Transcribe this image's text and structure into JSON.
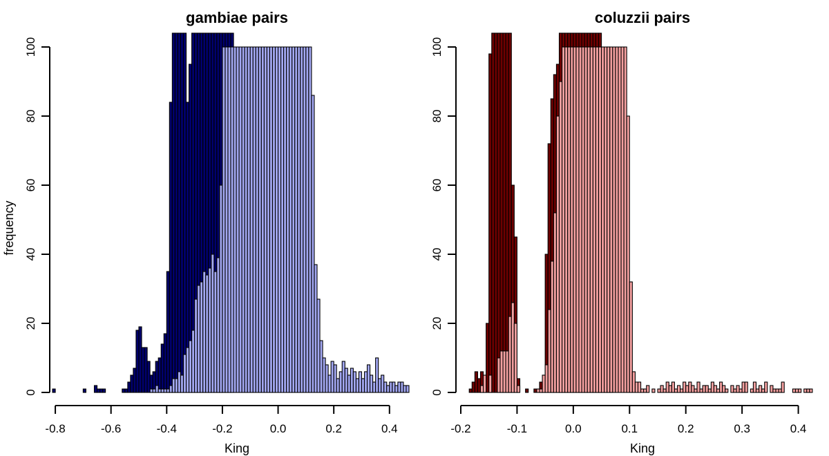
{
  "figure": {
    "ylabel": "frequency"
  },
  "chart_data": [
    {
      "type": "bar",
      "title": "gambiae pairs",
      "xlabel": "King",
      "ylabel": "frequency",
      "xlim": [
        -0.82,
        0.47
      ],
      "ylim": [
        0,
        100
      ],
      "bin_width": 0.01,
      "x_ticks": [
        "-0.8",
        "-0.6",
        "-0.4",
        "-0.2",
        "0.0",
        "0.2",
        "0.4"
      ],
      "y_ticks": [
        "0",
        "20",
        "40",
        "60",
        "80",
        "100"
      ],
      "series": [
        {
          "color": "#00006e",
          "bin_starts": [
            -0.81,
            -0.7,
            -0.66,
            -0.65,
            -0.64,
            -0.63,
            -0.56,
            -0.55,
            -0.54,
            -0.53,
            -0.52,
            -0.51,
            -0.5,
            -0.49,
            -0.48,
            -0.47,
            -0.46,
            -0.45,
            -0.44,
            -0.43,
            -0.42,
            -0.41,
            -0.4,
            -0.39,
            -0.38,
            -0.37,
            -0.36,
            -0.35,
            -0.34,
            -0.33,
            -0.32,
            -0.31,
            -0.3,
            -0.29,
            -0.28,
            -0.27,
            -0.26,
            -0.25,
            -0.24,
            -0.23,
            -0.22,
            -0.21,
            -0.2,
            -0.19,
            -0.18,
            -0.17
          ],
          "values": [
            1,
            1,
            2,
            1,
            1,
            1,
            1,
            1,
            3,
            5,
            7,
            18,
            19,
            13,
            13,
            9,
            5,
            6,
            9,
            10,
            14,
            17,
            35,
            84,
            120,
            120,
            120,
            110,
            110,
            84,
            95,
            105,
            120,
            110,
            110,
            120,
            120,
            120,
            120,
            120,
            120,
            120,
            120,
            110,
            108,
            120
          ]
        },
        {
          "color": "#a3a8f2",
          "bin_starts": [
            -0.46,
            -0.45,
            -0.44,
            -0.43,
            -0.42,
            -0.41,
            -0.4,
            -0.39,
            -0.38,
            -0.37,
            -0.36,
            -0.35,
            -0.34,
            -0.33,
            -0.32,
            -0.31,
            -0.3,
            -0.29,
            -0.28,
            -0.27,
            -0.26,
            -0.25,
            -0.24,
            -0.23,
            -0.22,
            -0.21,
            -0.2,
            -0.19,
            -0.18,
            -0.17,
            -0.16,
            -0.15,
            -0.14,
            -0.13,
            -0.12,
            -0.11,
            -0.1,
            -0.09,
            -0.08,
            -0.07,
            -0.06,
            -0.05,
            -0.04,
            -0.03,
            -0.02,
            -0.01,
            0.0,
            0.01,
            0.02,
            0.03,
            0.04,
            0.05,
            0.06,
            0.07,
            0.08,
            0.09,
            0.1,
            0.11,
            0.12,
            0.13,
            0.14,
            0.15,
            0.16,
            0.17,
            0.18,
            0.19,
            0.2,
            0.21,
            0.22,
            0.23,
            0.24,
            0.25,
            0.26,
            0.27,
            0.28,
            0.29,
            0.3,
            0.31,
            0.32,
            0.33,
            0.34,
            0.35,
            0.36,
            0.37,
            0.38,
            0.39,
            0.4,
            0.41,
            0.42,
            0.43,
            0.44,
            0.45,
            0.46
          ],
          "values": [
            1,
            1,
            2,
            1,
            1,
            1,
            1,
            2,
            4,
            4,
            6,
            5,
            11,
            13,
            15,
            18,
            27,
            31,
            32,
            35,
            34,
            36,
            40,
            35,
            39,
            60,
            100,
            100,
            100,
            100,
            100,
            100,
            100,
            100,
            100,
            100,
            100,
            100,
            100,
            100,
            100,
            100,
            100,
            100,
            100,
            100,
            100,
            100,
            100,
            100,
            100,
            100,
            100,
            100,
            100,
            100,
            100,
            100,
            86,
            37,
            27,
            15,
            10,
            8,
            5,
            9,
            8,
            4,
            6,
            9,
            7,
            5,
            7,
            6,
            4,
            6,
            4,
            6,
            8,
            5,
            3,
            10,
            4,
            5,
            3,
            2,
            3,
            3,
            2,
            3,
            3,
            2,
            2
          ]
        }
      ]
    },
    {
      "type": "bar",
      "title": "coluzzii pairs",
      "xlabel": "King",
      "ylabel": "",
      "xlim": [
        -0.2,
        0.43
      ],
      "ylim": [
        0,
        100
      ],
      "bin_width": 0.005,
      "x_ticks": [
        "-0.2",
        "-0.1",
        "0.0",
        "0.1",
        "0.2",
        "0.3",
        "0.4"
      ],
      "y_ticks": [
        "0",
        "20",
        "40",
        "60",
        "80",
        "100"
      ],
      "series": [
        {
          "color": "#6e0000",
          "bin_starts": [
            -0.185,
            -0.18,
            -0.175,
            -0.17,
            -0.165,
            -0.16,
            -0.155,
            -0.15,
            -0.145,
            -0.14,
            -0.135,
            -0.13,
            -0.125,
            -0.12,
            -0.115,
            -0.11,
            -0.105,
            -0.1,
            -0.085,
            -0.07,
            -0.06,
            -0.055,
            -0.05,
            -0.045,
            -0.04,
            -0.035,
            -0.03,
            -0.025,
            -0.02,
            -0.015,
            -0.01,
            -0.005,
            0.0,
            0.005,
            0.01,
            0.015,
            0.02,
            0.025,
            0.03,
            0.035,
            0.04,
            0.045,
            0.05,
            0.055,
            0.06,
            0.065
          ],
          "values": [
            1,
            3,
            6,
            4,
            6,
            3,
            20,
            98,
            104,
            120,
            120,
            120,
            120,
            105,
            120,
            60,
            45,
            4,
            1,
            1,
            3,
            5,
            40,
            72,
            85,
            92,
            95,
            105,
            110,
            110,
            115,
            110,
            115,
            110,
            110,
            120,
            115,
            112,
            120,
            110,
            105,
            110,
            78,
            80,
            100,
            95
          ]
        },
        {
          "color": "#f4a0a0",
          "bin_starts": [
            -0.165,
            -0.16,
            -0.15,
            -0.135,
            -0.13,
            -0.125,
            -0.12,
            -0.115,
            -0.11,
            -0.105,
            -0.1,
            -0.065,
            -0.06,
            -0.055,
            -0.05,
            -0.045,
            -0.04,
            -0.035,
            -0.03,
            -0.025,
            -0.02,
            -0.015,
            -0.01,
            -0.005,
            0.0,
            0.005,
            0.01,
            0.015,
            0.02,
            0.025,
            0.03,
            0.035,
            0.04,
            0.045,
            0.05,
            0.055,
            0.06,
            0.065,
            0.07,
            0.075,
            0.08,
            0.085,
            0.09,
            0.095,
            0.1,
            0.105,
            0.11,
            0.115,
            0.12,
            0.125,
            0.13,
            0.14,
            0.15,
            0.155,
            0.16,
            0.165,
            0.17,
            0.175,
            0.18,
            0.185,
            0.19,
            0.195,
            0.2,
            0.205,
            0.21,
            0.215,
            0.22,
            0.225,
            0.23,
            0.235,
            0.24,
            0.245,
            0.25,
            0.255,
            0.26,
            0.265,
            0.27,
            0.28,
            0.285,
            0.29,
            0.295,
            0.3,
            0.305,
            0.315,
            0.32,
            0.325,
            0.33,
            0.335,
            0.34,
            0.35,
            0.355,
            0.36,
            0.365,
            0.37,
            0.39,
            0.395,
            0.4,
            0.41,
            0.415,
            0.42
          ],
          "values": [
            2,
            5,
            5,
            10,
            12,
            12,
            12,
            22,
            26,
            20,
            2,
            1,
            1,
            5,
            8,
            24,
            38,
            52,
            80,
            90,
            100,
            100,
            100,
            100,
            100,
            100,
            100,
            100,
            100,
            100,
            100,
            100,
            100,
            100,
            100,
            100,
            100,
            100,
            100,
            100,
            100,
            100,
            100,
            80,
            32,
            6,
            3,
            3,
            1,
            1,
            2,
            1,
            1,
            2,
            1,
            3,
            2,
            3,
            1,
            2,
            1,
            3,
            2,
            3,
            2,
            1,
            3,
            1,
            2,
            2,
            1,
            3,
            2,
            1,
            3,
            2,
            1,
            2,
            1,
            2,
            1,
            3,
            3,
            1,
            3,
            1,
            2,
            1,
            3,
            2,
            1,
            1,
            1,
            3,
            1,
            1,
            1,
            1,
            1,
            1
          ]
        }
      ]
    }
  ]
}
